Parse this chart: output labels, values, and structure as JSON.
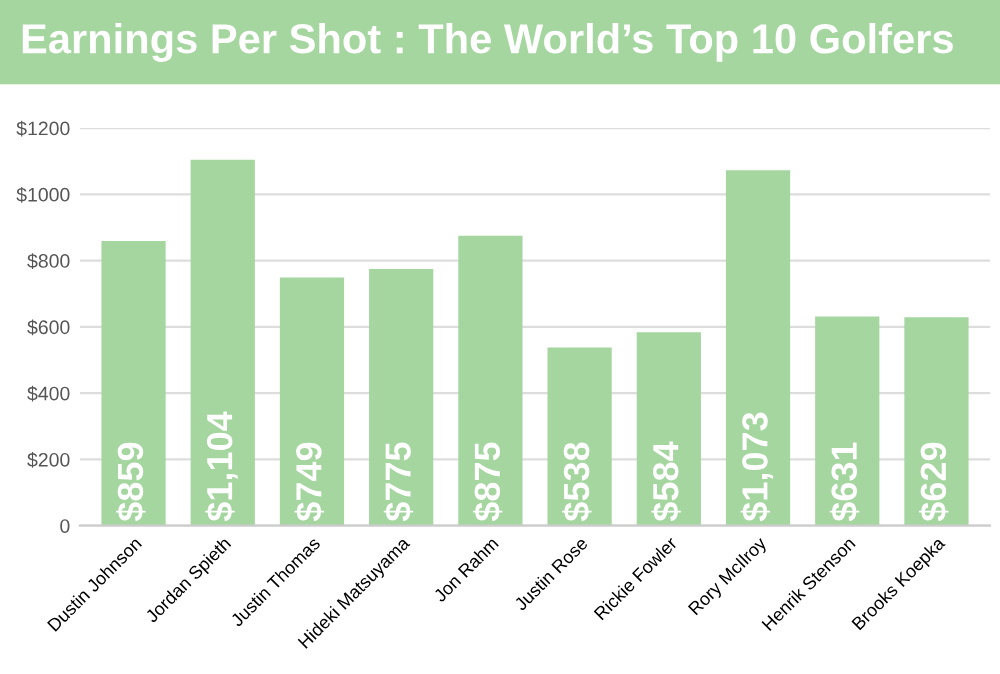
{
  "chart_data": {
    "type": "bar",
    "title": "Earnings Per Shot : The World’s Top 10 Golfers",
    "categories": [
      "Dustin Johnson",
      "Jordan Spieth",
      "Justin Thomas",
      "Hideki Matsuyama",
      "Jon Rahm",
      "Justin Rose",
      "Rickie Fowler",
      "Rory McIlroy",
      "Henrik Stenson",
      "Brooks Koepka"
    ],
    "values": [
      859,
      1104,
      749,
      775,
      875,
      538,
      584,
      1073,
      631,
      629
    ],
    "value_labels": [
      "$859",
      "$1,104",
      "$749",
      "$775",
      "$875",
      "$538",
      "$584",
      "$1,073",
      "$631",
      "$629"
    ],
    "color": "#a5d6a0",
    "ylim": [
      0,
      1200
    ],
    "yticks": [
      0,
      {
        "value": 200,
        "label": "$200"
      },
      {
        "value": 400,
        "label": "$400"
      },
      {
        "value": 600,
        "label": "$600"
      },
      {
        "value": 800,
        "label": "$800"
      },
      {
        "value": 1000,
        "label": "$1000"
      },
      {
        "value": 1200,
        "label": "$1200"
      }
    ],
    "grid": "y"
  }
}
